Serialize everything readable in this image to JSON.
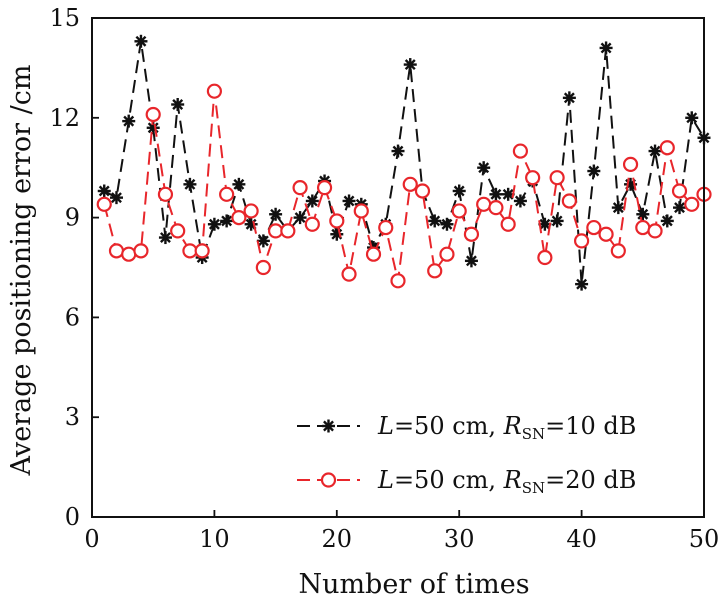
{
  "chart_data": {
    "type": "line",
    "title": "",
    "xlabel": "Number of times",
    "ylabel": "Average positioning error /cm",
    "xlim": [
      0,
      50
    ],
    "ylim": [
      0,
      15
    ],
    "xticks": [
      0,
      10,
      20,
      30,
      40,
      50
    ],
    "yticks": [
      0,
      3,
      6,
      9,
      12,
      15
    ],
    "grid": false,
    "legend_position": "bottom-right",
    "x": [
      1,
      2,
      3,
      4,
      5,
      6,
      7,
      8,
      9,
      10,
      11,
      12,
      13,
      14,
      15,
      16,
      17,
      18,
      19,
      20,
      21,
      22,
      23,
      24,
      25,
      26,
      27,
      28,
      29,
      30,
      31,
      32,
      33,
      34,
      35,
      36,
      37,
      38,
      39,
      40,
      41,
      42,
      43,
      44,
      45,
      46,
      47,
      48,
      49,
      50
    ],
    "series": [
      {
        "legend": {
          "var": "L",
          "mid": "=50 cm, ",
          "var2": "R",
          "sub": "SN",
          "tail": "=10 dB"
        },
        "color": "#111111",
        "marker": "asterisk",
        "line_style": "dashed",
        "values": [
          9.8,
          9.6,
          11.9,
          14.3,
          11.7,
          8.4,
          12.4,
          10.0,
          7.8,
          8.8,
          8.9,
          10.0,
          8.8,
          8.3,
          9.1,
          8.6,
          9.0,
          9.5,
          10.1,
          8.5,
          9.5,
          9.4,
          8.1,
          8.8,
          11.0,
          13.6,
          9.8,
          8.9,
          8.8,
          9.8,
          7.7,
          10.5,
          9.7,
          9.7,
          9.5,
          10.1,
          8.8,
          8.9,
          12.6,
          7.0,
          10.4,
          14.1,
          9.3,
          10.0,
          9.1,
          11.0,
          8.9,
          9.3,
          12.0,
          11.4
        ]
      },
      {
        "legend": {
          "var": "L",
          "mid": "=50 cm, ",
          "var2": "R",
          "sub": "SN",
          "tail": "=20 dB"
        },
        "color": "#e8262b",
        "marker": "circle",
        "line_style": "dashed",
        "values": [
          9.4,
          8.0,
          7.9,
          8.0,
          12.1,
          9.7,
          8.6,
          8.0,
          8.0,
          12.8,
          9.7,
          9.0,
          9.2,
          7.5,
          8.6,
          8.6,
          9.9,
          8.8,
          9.9,
          8.9,
          7.3,
          9.2,
          7.9,
          8.7,
          7.1,
          10.0,
          9.8,
          7.4,
          7.9,
          9.2,
          8.5,
          9.4,
          9.3,
          8.8,
          11.0,
          10.2,
          7.8,
          10.2,
          9.5,
          8.3,
          8.7,
          8.5,
          8.0,
          10.6,
          8.7,
          8.6,
          11.1,
          9.8,
          9.4,
          9.7
        ]
      }
    ]
  }
}
